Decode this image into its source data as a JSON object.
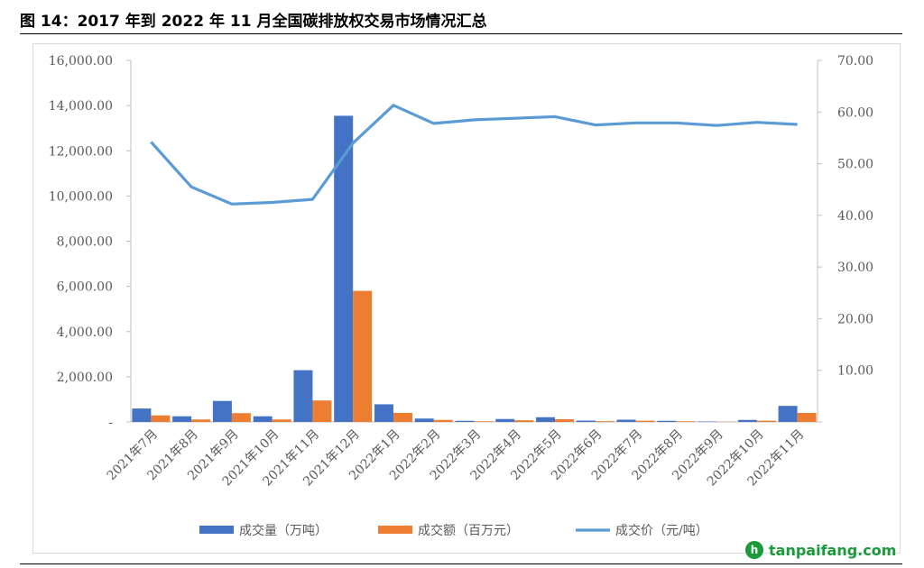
{
  "header": {
    "title": "图 14：2017 年到 2022 年 11 月全国碳排放权交易市场情况汇总"
  },
  "watermark": {
    "icon": "leaf-icon",
    "icon_glyph": "h",
    "text": "tanpaifang.com",
    "color": "#1a9a3a"
  },
  "chart_data": {
    "type": "bar",
    "title": "",
    "categories": [
      "2021年7月",
      "2021年8月",
      "2021年9月",
      "2021年10月",
      "2021年11月",
      "2021年12月",
      "2022年1月",
      "2022年2月",
      "2022年3月",
      "2022年4月",
      "2022年5月",
      "2022年6月",
      "2022年7月",
      "2022年8月",
      "2022年9月",
      "2022年10月",
      "2022年11月"
    ],
    "series": [
      {
        "name": "成交量（万吨）",
        "type": "bar",
        "axis": "left",
        "color": "#4472c4",
        "values": [
          595,
          250,
          930,
          250,
          2290,
          13550,
          780,
          150,
          50,
          130,
          210,
          60,
          100,
          50,
          20,
          90,
          710
        ]
      },
      {
        "name": "成交额（百万元）",
        "type": "bar",
        "axis": "left",
        "color": "#ed7d31",
        "values": [
          290,
          110,
          390,
          110,
          950,
          5800,
          400,
          90,
          30,
          75,
          120,
          35,
          55,
          30,
          10,
          55,
          400
        ]
      },
      {
        "name": "成交价（元/吨）",
        "type": "line",
        "axis": "right",
        "color": "#5b9bd5",
        "values": [
          54.2,
          45.5,
          42.2,
          42.5,
          43.1,
          54.0,
          61.3,
          57.8,
          58.5,
          58.8,
          59.1,
          57.5,
          57.9,
          57.9,
          57.4,
          58.0,
          57.6
        ]
      }
    ],
    "y_left": {
      "ylim": [
        0,
        16000
      ],
      "ticks": [
        "-",
        "2,000.00",
        "4,000.00",
        "6,000.00",
        "8,000.00",
        "10,000.00",
        "12,000.00",
        "14,000.00",
        "16,000.00"
      ]
    },
    "y_right": {
      "ylim": [
        0,
        70
      ],
      "ticks": [
        "",
        "10.00",
        "20.00",
        "30.00",
        "40.00",
        "50.00",
        "60.00",
        "70.00"
      ]
    },
    "legend_position": "bottom",
    "grid": false
  }
}
